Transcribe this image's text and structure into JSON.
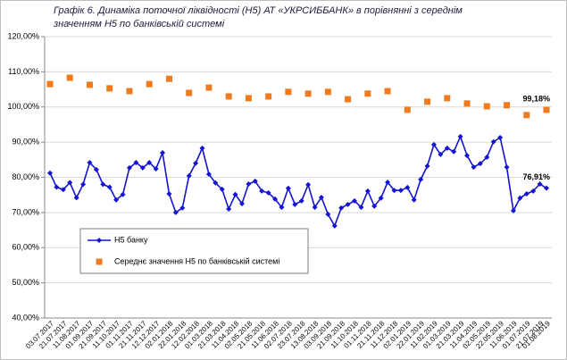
{
  "chart_data": {
    "type": "line",
    "title": "Графік 6. Динаміка поточної ліквідності (Н5) АТ «УКРСИББАНК» в порівнянні з середнім значенням Н5 по банківській системі",
    "categories": [
      "03.07.2017",
      null,
      "21.07.2017",
      null,
      "11.08.2017",
      null,
      "01.09.2017",
      null,
      "21.09.2017",
      null,
      "11.10.2017",
      null,
      "01.11.2017",
      null,
      "21.11.2017",
      null,
      "12.12.2017",
      null,
      "02.01.2018",
      null,
      "22.01.2018",
      null,
      "12.02.2018",
      null,
      "01.03.2018",
      null,
      "21.03.2018",
      null,
      "11.04.2018",
      null,
      "02.05.2018",
      null,
      "21.05.2018",
      null,
      "11.06.2018",
      null,
      "02.07.2018",
      null,
      "23.07.2018",
      null,
      "13.08.2018",
      null,
      "03.09.2018",
      null,
      "21.09.2018",
      null,
      "11.10.2018",
      null,
      "01.11.2018",
      null,
      "21.11.2018",
      null,
      "11.12.2018",
      null,
      "02.01.2019",
      null,
      "22.01.2019",
      null,
      "11.02.2019",
      null,
      "01.03.2019",
      null,
      "21.03.2019",
      null,
      "11.04.2019",
      null,
      "02.05.2019",
      null,
      "22.05.2019",
      null,
      "11.06.2019",
      null,
      "01.07.2019",
      null,
      "21.07.2019",
      "01.08.2019"
    ],
    "series": [
      {
        "name": "Н5 банку",
        "color": "#1414d2",
        "style": "line",
        "values": [
          81.2,
          77.2,
          76.5,
          78.5,
          74.2,
          78,
          84.2,
          82.2,
          78,
          77.2,
          73.6,
          75.1,
          82.7,
          84.2,
          82.7,
          84.2,
          82.4,
          87,
          75.3,
          70,
          71.3,
          80.4,
          84,
          88.3,
          80.9,
          78.4,
          76.6,
          71,
          75.1,
          72.5,
          78.1,
          78.9,
          76.1,
          75.6,
          73.8,
          71.5,
          76.9,
          72.3,
          73.3,
          77.9,
          71.5,
          74.3,
          69.5,
          66.2,
          71.3,
          72.3,
          73.3,
          71.5,
          76.1,
          71.8,
          74.1,
          78.6,
          76.3,
          76.3,
          77.1,
          73.6,
          79.4,
          83.2,
          89.3,
          86.5,
          88.3,
          87.3,
          91.6,
          86.2,
          82.9,
          83.9,
          85.7,
          90.1,
          91.3,
          82.9,
          70.5,
          74.1,
          75.3,
          76.1,
          78.1,
          76.91
        ],
        "value_labels": [
          null,
          null,
          null,
          null,
          null,
          null,
          null,
          null,
          null,
          null,
          null,
          null,
          null,
          null,
          null,
          null,
          null,
          null,
          null,
          null,
          null,
          null,
          null,
          null,
          null,
          null,
          null,
          null,
          null,
          null,
          null,
          null,
          null,
          null,
          null,
          null,
          null,
          null,
          null,
          null,
          null,
          null,
          null,
          null,
          null,
          null,
          null,
          null,
          null,
          null,
          null,
          null,
          null,
          null,
          null,
          null,
          null,
          null,
          null,
          null,
          null,
          null,
          null,
          null,
          null,
          null,
          null,
          null,
          null,
          null,
          null,
          null,
          null,
          null,
          null,
          "76,91%"
        ]
      },
      {
        "name": "Середнє значення Н5 по банківській системі",
        "color": "#f07a1e",
        "style": "markers",
        "values": [
          106.5,
          null,
          null,
          108.3,
          null,
          null,
          106.3,
          null,
          null,
          105.3,
          null,
          null,
          104.5,
          null,
          null,
          106.5,
          null,
          null,
          108,
          null,
          null,
          104,
          null,
          null,
          105.5,
          null,
          null,
          103,
          null,
          null,
          102.5,
          null,
          null,
          103,
          null,
          null,
          104.3,
          null,
          null,
          103.8,
          null,
          null,
          104.3,
          null,
          null,
          102.2,
          null,
          null,
          103.8,
          null,
          null,
          104.5,
          null,
          null,
          99.2,
          null,
          null,
          101.5,
          null,
          null,
          102.5,
          null,
          null,
          101,
          null,
          null,
          100.2,
          null,
          null,
          100.5,
          null,
          null,
          97.7,
          null,
          null,
          99.18
        ],
        "value_labels": [
          null,
          null,
          null,
          null,
          null,
          null,
          null,
          null,
          null,
          null,
          null,
          null,
          null,
          null,
          null,
          null,
          null,
          null,
          null,
          null,
          null,
          null,
          null,
          null,
          null,
          null,
          null,
          null,
          null,
          null,
          null,
          null,
          null,
          null,
          null,
          null,
          null,
          null,
          null,
          null,
          null,
          null,
          null,
          null,
          null,
          null,
          null,
          null,
          null,
          null,
          null,
          null,
          null,
          null,
          null,
          null,
          null,
          null,
          null,
          null,
          null,
          null,
          null,
          null,
          null,
          null,
          null,
          null,
          null,
          null,
          null,
          null,
          null,
          null,
          null,
          "99,18%"
        ]
      }
    ],
    "ylim": [
      40,
      120
    ],
    "yticks": [
      {
        "value": 40,
        "label": "40,00%"
      },
      {
        "value": 50,
        "label": "50,00%"
      },
      {
        "value": 60,
        "label": "60,00%"
      },
      {
        "value": 70,
        "label": "70,00%"
      },
      {
        "value": 80,
        "label": "80,00%"
      },
      {
        "value": 90,
        "label": "90,00%"
      },
      {
        "value": 100,
        "label": "100,00%"
      },
      {
        "value": 110,
        "label": "110,00%"
      },
      {
        "value": 120,
        "label": "120,00%"
      }
    ],
    "grid": true,
    "legend": "lower left"
  }
}
